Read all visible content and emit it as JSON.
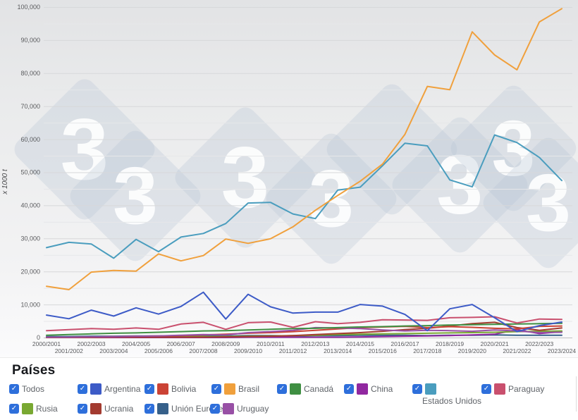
{
  "watermark": {
    "glyph": "3"
  },
  "chart": {
    "y_axis_unit": "x 1000 t"
  },
  "chart_data": {
    "type": "line",
    "title": "",
    "xlabel": "",
    "ylabel": "x 1000 t",
    "ylim": [
      0,
      100000
    ],
    "y_tick_step": 10000,
    "y_minor_step": 5000,
    "grid": true,
    "legend_position": "bottom",
    "y_ticks": [
      "0",
      "10,000",
      "20,000",
      "30,000",
      "40,000",
      "50,000",
      "60,000",
      "70,000",
      "80,000",
      "90,000",
      "100,000"
    ],
    "x": [
      "2000/2001",
      "2001/2002",
      "2002/2003",
      "2003/2004",
      "2004/2005",
      "2005/2006",
      "2006/2007",
      "2007/2008",
      "2008/2009",
      "2009/2010",
      "2010/2011",
      "2011/2012",
      "2012/2013",
      "2013/2014",
      "2014/2015",
      "2015/2016",
      "2016/2017",
      "2017/2018",
      "2018/2019",
      "2019/2020",
      "2020/2021",
      "2021/2022",
      "2022/2023",
      "2023/2024"
    ],
    "series": [
      {
        "name": "Unión Europea",
        "color": "#36608a",
        "values": [
          300,
          300,
          400,
          400,
          500,
          500,
          500,
          600,
          500,
          600,
          600,
          500,
          600,
          600,
          700,
          700,
          700,
          600,
          700,
          700,
          800,
          700,
          700,
          700
        ]
      },
      {
        "name": "China",
        "color": "#9128a0",
        "values": [
          0,
          0,
          0,
          0,
          0,
          0,
          0,
          0,
          0,
          100,
          100,
          100,
          100,
          100,
          200,
          300,
          400,
          500,
          600,
          800,
          1000,
          2400,
          1200,
          1800
        ]
      },
      {
        "name": "Rusia",
        "color": "#79a832",
        "values": [
          0,
          0,
          100,
          100,
          100,
          200,
          200,
          300,
          300,
          400,
          500,
          600,
          700,
          900,
          1000,
          1100,
          1200,
          1300,
          1400,
          1500,
          1600,
          1800,
          1900,
          2000
        ]
      },
      {
        "name": "Ucrania",
        "color": "#a33b30",
        "values": [
          0,
          0,
          0,
          100,
          100,
          100,
          100,
          100,
          200,
          300,
          400,
          600,
          900,
          1200,
          1500,
          1900,
          2400,
          2800,
          3500,
          4200,
          4600,
          3000,
          2200,
          2900
        ]
      },
      {
        "name": "Bolivia",
        "color": "#cb4335",
        "values": [
          100,
          100,
          200,
          300,
          400,
          500,
          600,
          800,
          1000,
          1300,
          1500,
          1800,
          2200,
          2600,
          3000,
          3200,
          3400,
          3000,
          3300,
          3100,
          2800,
          2600,
          3400,
          3500
        ]
      },
      {
        "name": "Uruguay",
        "color": "#9850a5",
        "values": [
          100,
          100,
          200,
          300,
          400,
          500,
          700,
          900,
          800,
          1500,
          1800,
          2200,
          3000,
          2900,
          2700,
          2300,
          2000,
          2200,
          2100,
          1900,
          2300,
          2000,
          1500,
          1600
        ]
      },
      {
        "name": "Canadá",
        "color": "#3f8f42",
        "values": [
          700,
          900,
          1100,
          1300,
          1400,
          1600,
          1800,
          2000,
          2100,
          2300,
          2500,
          2700,
          2800,
          3000,
          3200,
          3300,
          3500,
          3600,
          3800,
          3900,
          4000,
          4100,
          4200,
          4300
        ]
      },
      {
        "name": "Paraguay",
        "color": "#c9506e",
        "values": [
          2100,
          2400,
          2700,
          2500,
          2900,
          2500,
          4100,
          4600,
          2500,
          4500,
          4700,
          3100,
          4800,
          4200,
          4600,
          5400,
          5300,
          5200,
          6000,
          6100,
          6300,
          4400,
          5600,
          5500
        ]
      },
      {
        "name": "Argentina",
        "color": "#3d5bc7",
        "values": [
          6800,
          5700,
          8300,
          6500,
          9000,
          7100,
          9400,
          13700,
          5600,
          13100,
          9300,
          7400,
          7700,
          7700,
          10000,
          9500,
          7000,
          2100,
          8700,
          10000,
          6000,
          1800,
          3600,
          4700
        ]
      },
      {
        "name": "Estados Unidos",
        "color": "#4a9dbe",
        "values": [
          27200,
          28800,
          28300,
          24000,
          29700,
          26000,
          30400,
          31500,
          34500,
          40700,
          40900,
          37400,
          36000,
          44600,
          45500,
          52000,
          58800,
          58000,
          47700,
          45600,
          61300,
          59000,
          54500,
          47500
        ]
      },
      {
        "name": "Brasil",
        "color": "#f0a03c",
        "values": [
          15500,
          14500,
          19800,
          20300,
          20100,
          25300,
          23200,
          24800,
          29800,
          28500,
          29900,
          33500,
          38500,
          43000,
          47300,
          52500,
          61500,
          76000,
          75000,
          92500,
          85500,
          81000,
          95500,
          99500
        ]
      }
    ]
  },
  "legend": {
    "title": "Países",
    "checkbox_glyph": "✓",
    "items": [
      {
        "label": "Todos",
        "color": null,
        "checked": true
      },
      {
        "label": "Argentina",
        "color": "#3d5bc7",
        "checked": true
      },
      {
        "label": "Bolivia",
        "color": "#cb4335",
        "checked": true
      },
      {
        "label": "Brasil",
        "color": "#f0a03c",
        "checked": true
      },
      {
        "label": "Canadá",
        "color": "#3f8f42",
        "checked": true
      },
      {
        "label": "China",
        "color": "#9128a0",
        "checked": true
      },
      {
        "label": "Estados Unidos",
        "color": "#4a9dbe",
        "checked": true,
        "label_below": true
      },
      {
        "label": "Paraguay",
        "color": "#c9506e",
        "checked": true
      },
      {
        "label": "Rusia",
        "color": "#79a832",
        "checked": true
      },
      {
        "label": "Ucrania",
        "color": "#a33b30",
        "checked": true
      },
      {
        "label": "Unión Europea",
        "color": "#36608a",
        "checked": true
      },
      {
        "label": "Uruguay",
        "color": "#9850a5",
        "checked": true
      }
    ]
  }
}
